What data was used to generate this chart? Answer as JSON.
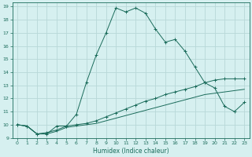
{
  "title": "",
  "xlabel": "Humidex (Indice chaleur)",
  "xlim": [
    -0.5,
    23.5
  ],
  "ylim": [
    9,
    19.3
  ],
  "yticks": [
    9,
    10,
    11,
    12,
    13,
    14,
    15,
    16,
    17,
    18,
    19
  ],
  "xticks": [
    0,
    1,
    2,
    3,
    4,
    5,
    6,
    7,
    8,
    9,
    10,
    11,
    12,
    13,
    14,
    15,
    16,
    17,
    18,
    19,
    20,
    21,
    22,
    23
  ],
  "bg_color": "#d6f0f0",
  "grid_color": "#b8d8d8",
  "line_color": "#1a6b5a",
  "line1_x": [
    0,
    1,
    2,
    3,
    4,
    5,
    6,
    7,
    8,
    9,
    10,
    11,
    12,
    13,
    14,
    15,
    16,
    17,
    18,
    19,
    20,
    21,
    22,
    23
  ],
  "line1_y": [
    10.0,
    9.9,
    9.3,
    9.3,
    9.9,
    9.9,
    10.8,
    13.2,
    15.3,
    17.0,
    18.9,
    18.6,
    18.9,
    18.5,
    17.3,
    16.3,
    16.5,
    15.6,
    14.4,
    13.2,
    12.8,
    11.4,
    11.0,
    11.7
  ],
  "line2_x": [
    0,
    1,
    2,
    3,
    4,
    5,
    6,
    7,
    8,
    9,
    10,
    11,
    12,
    13,
    14,
    15,
    16,
    17,
    18,
    19,
    20,
    21,
    22,
    23
  ],
  "line2_y": [
    10.0,
    9.9,
    9.3,
    9.4,
    9.6,
    9.9,
    10.0,
    10.1,
    10.3,
    10.6,
    10.9,
    11.2,
    11.5,
    11.8,
    12.0,
    12.3,
    12.5,
    12.7,
    12.9,
    13.2,
    13.4,
    13.5,
    13.5,
    13.5
  ],
  "line3_x": [
    0,
    1,
    2,
    3,
    4,
    5,
    6,
    7,
    8,
    9,
    10,
    11,
    12,
    13,
    14,
    15,
    16,
    17,
    18,
    19,
    20,
    21,
    22,
    23
  ],
  "line3_y": [
    10.0,
    9.9,
    9.3,
    9.3,
    9.5,
    9.8,
    9.9,
    10.0,
    10.1,
    10.3,
    10.5,
    10.7,
    10.9,
    11.1,
    11.3,
    11.5,
    11.7,
    11.9,
    12.1,
    12.3,
    12.4,
    12.5,
    12.6,
    12.7
  ]
}
